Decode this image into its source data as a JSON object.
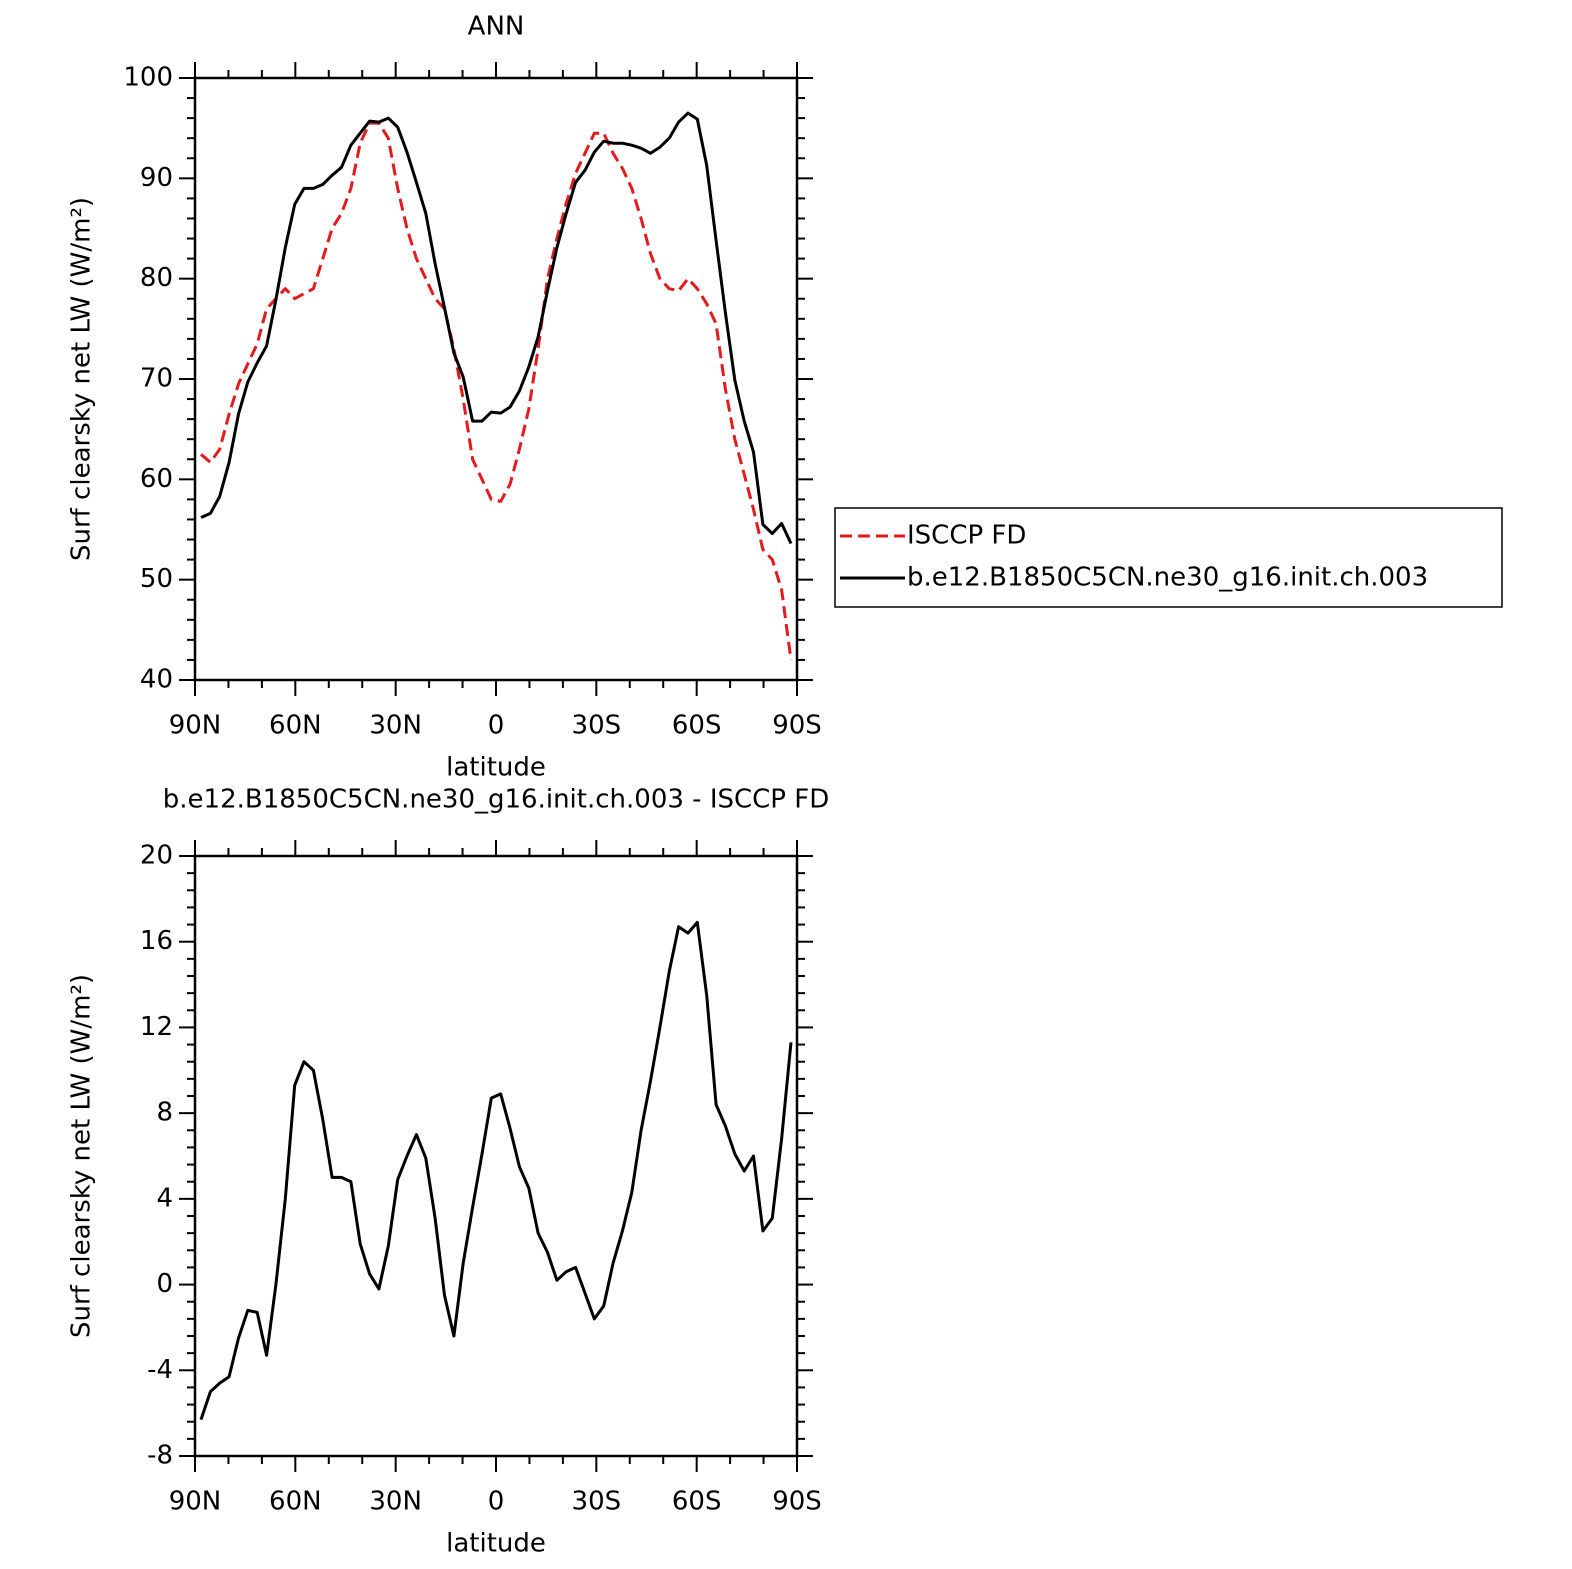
{
  "chart_data": [
    {
      "type": "line",
      "title": "ANN",
      "xlabel": "latitude",
      "ylabel": "Surf clearsky net LW (W/m²)",
      "xlim": [
        90,
        -90
      ],
      "xticks": [
        {
          "value": 90,
          "label": "90N"
        },
        {
          "value": 60,
          "label": "60N"
        },
        {
          "value": 30,
          "label": "30N"
        },
        0,
        {
          "value": -30,
          "label": "30S"
        },
        {
          "value": -60,
          "label": "60S"
        },
        {
          "value": -90,
          "label": "90S"
        }
      ],
      "ylim": [
        40,
        100
      ],
      "yticks": [
        40,
        50,
        60,
        70,
        80,
        90,
        100
      ],
      "legend": "right",
      "x": [
        88.2,
        85.4,
        82.6,
        79.8,
        77,
        74.2,
        71.4,
        68.6,
        65.8,
        63,
        60.2,
        57.4,
        54.6,
        51.8,
        49,
        46.2,
        43.4,
        40.6,
        37.8,
        35,
        32.2,
        29.4,
        26.6,
        23.8,
        21,
        18.2,
        15.4,
        12.6,
        9.8,
        7,
        4.2,
        1.4,
        -1.4,
        -4.2,
        -7,
        -9.8,
        -12.6,
        -15.4,
        -18.2,
        -21,
        -23.8,
        -26.6,
        -29.4,
        -32.2,
        -35,
        -37.8,
        -40.6,
        -43.4,
        -46.2,
        -49,
        -51.8,
        -54.6,
        -57.4,
        -60.2,
        -63,
        -65.8,
        -68.6,
        -71.4,
        -74.2,
        -77,
        -79.8,
        -82.6,
        -85.4,
        -88.2
      ],
      "series": [
        {
          "name": "ISCCP FD",
          "color": "#e41a1c",
          "style": "dashed",
          "values": [
            62.5,
            61.7,
            63,
            66.5,
            69.5,
            71.5,
            73.5,
            77,
            78,
            79,
            78,
            78.5,
            79,
            82,
            85,
            86.5,
            89,
            93.5,
            95.5,
            95.5,
            94,
            89,
            85,
            82,
            80,
            78,
            77,
            73,
            68,
            62,
            60,
            58,
            57.8,
            59.5,
            63,
            67,
            73,
            80,
            84,
            87.5,
            90.5,
            92.5,
            94.5,
            94.5,
            92.5,
            91,
            89,
            86,
            82.5,
            80,
            79,
            78.8,
            80,
            79,
            77.5,
            75.5,
            69,
            64,
            60.5,
            57,
            53,
            52,
            49,
            42
          ]
        },
        {
          "name": "b.e12.B1850C5CN.ne30_g16.init.ch.003",
          "color": "#000000",
          "style": "solid",
          "values": [
            56.2,
            56.6,
            58.3,
            61.7,
            66.5,
            69.7,
            71.6,
            73.3,
            77.9,
            83.1,
            87.4,
            89,
            89,
            89.4,
            90.3,
            91.1,
            93.3,
            94.5,
            95.7,
            95.6,
            96,
            95.1,
            92.6,
            89.6,
            86.5,
            81.5,
            77.1,
            72.6,
            70.2,
            65.8,
            65.8,
            66.7,
            66.6,
            67.2,
            68.8,
            71.2,
            74.2,
            78.8,
            83.1,
            86.5,
            89.6,
            90.8,
            92.6,
            93.7,
            93.5,
            93.5,
            93.3,
            93,
            92.5,
            93.1,
            94,
            95.6,
            96.5,
            95.9,
            91.3,
            83.8,
            76.6,
            69.9,
            65.8,
            62.7,
            55.5,
            54.6,
            55.6,
            53.6
          ]
        }
      ]
    },
    {
      "type": "line",
      "title": "b.e12.B1850C5CN.ne30_g16.init.ch.003 - ISCCP FD",
      "xlabel": "latitude",
      "ylabel": "Surf clearsky net LW (W/m²)",
      "xlim": [
        90,
        -90
      ],
      "xticks": [
        {
          "value": 90,
          "label": "90N"
        },
        {
          "value": 60,
          "label": "60N"
        },
        {
          "value": 30,
          "label": "30N"
        },
        0,
        {
          "value": -30,
          "label": "30S"
        },
        {
          "value": -60,
          "label": "60S"
        },
        {
          "value": -90,
          "label": "90S"
        }
      ],
      "ylim": [
        -8,
        20
      ],
      "yticks": [
        -8,
        -4,
        0,
        4,
        8,
        12,
        16,
        20
      ],
      "x": [
        88.2,
        85.4,
        82.6,
        79.8,
        77,
        74.2,
        71.4,
        68.6,
        65.8,
        63,
        60.2,
        57.4,
        54.6,
        51.8,
        49,
        46.2,
        43.4,
        40.6,
        37.8,
        35,
        32.2,
        29.4,
        26.6,
        23.8,
        21,
        18.2,
        15.4,
        12.6,
        9.8,
        7,
        4.2,
        1.4,
        -1.4,
        -4.2,
        -7,
        -9.8,
        -12.6,
        -15.4,
        -18.2,
        -21,
        -23.8,
        -26.6,
        -29.4,
        -32.2,
        -35,
        -37.8,
        -40.6,
        -43.4,
        -46.2,
        -49,
        -51.8,
        -54.6,
        -57.4,
        -60.2,
        -63,
        -65.8,
        -68.6,
        -71.4,
        -74.2,
        -77,
        -79.8,
        -82.6,
        -85.4,
        -88.2
      ],
      "series": [
        {
          "color": "#000000",
          "style": "solid",
          "values": [
            -6.3,
            -5,
            -4.6,
            -4.3,
            -2.5,
            -1.2,
            -1.3,
            -3.3,
            0,
            4,
            9.3,
            10.4,
            10,
            7.7,
            5,
            5,
            4.8,
            1.9,
            0.5,
            -0.2,
            1.8,
            4.9,
            6,
            7,
            5.9,
            3.1,
            -0.5,
            -2.4,
            1,
            3.6,
            6.1,
            8.7,
            8.9,
            7.3,
            5.5,
            4.5,
            2.4,
            1.5,
            0.2,
            0.6,
            0.8,
            -0.4,
            -1.6,
            -1,
            1,
            2.5,
            4.3,
            7.2,
            9.5,
            12,
            14.6,
            16.7,
            16.4,
            16.9,
            13.5,
            8.4,
            7.4,
            6.1,
            5.3,
            6,
            2.5,
            3.1,
            6.8,
            11.3
          ]
        }
      ]
    }
  ]
}
